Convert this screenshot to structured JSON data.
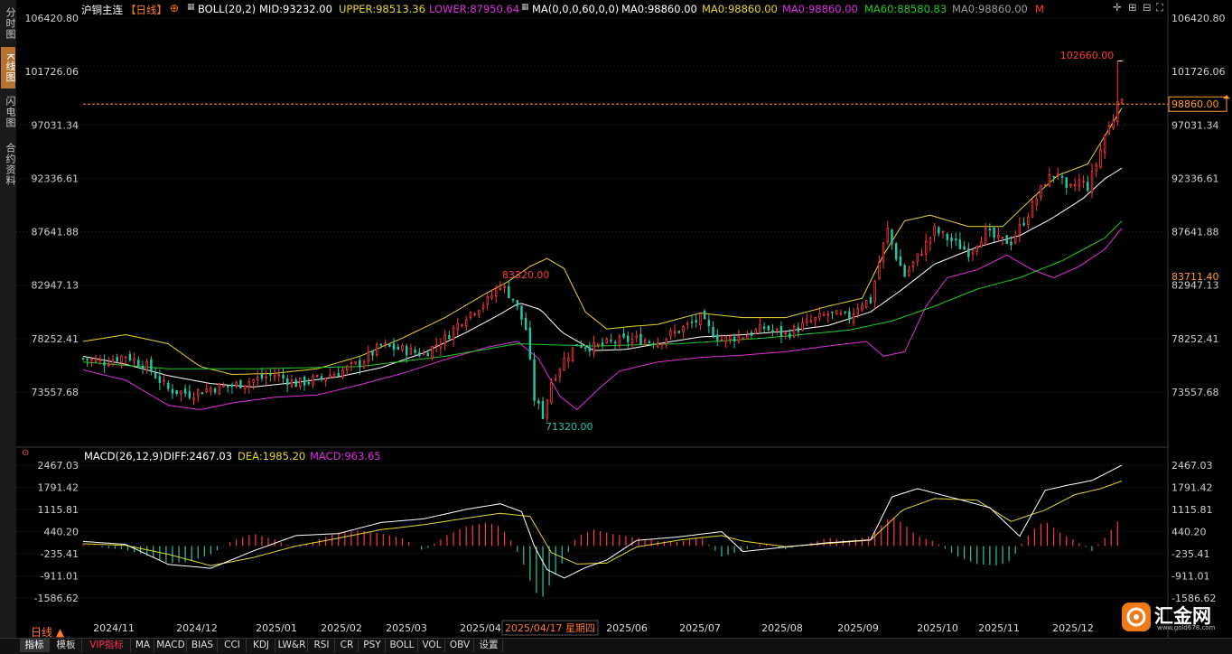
{
  "left_tabs": [
    {
      "name": "tab-fenshi",
      "label": "分时图",
      "active": false
    },
    {
      "name": "tab-kline",
      "label": "K线图",
      "active": true
    },
    {
      "name": "tab-flash",
      "label": "闪电图",
      "active": false
    },
    {
      "name": "tab-contract",
      "label": "合约资料",
      "active": false
    }
  ],
  "header": {
    "symbol": "沪铜主连",
    "period": "【日线】",
    "boll": "BOLL(20,2)",
    "mid": "MID:93232.00",
    "upper": "UPPER:98513.36",
    "lower": "LOWER:87950.64",
    "ma": "MA(0,0,0,60,0,0)",
    "ma0a": "MA0:98860.00",
    "ma0b": "MA0:98860.00",
    "ma0c": "MA0:98860.00",
    "ma60": "MA60:88580.83",
    "ma0d": "MA0:98860.00",
    "m": "M"
  },
  "macd_header": {
    "label": "MACD(26,12,9)",
    "diff": "DIFF:2467.03",
    "dea": "DEA:1985.20",
    "macd": "MACD:963.65"
  },
  "colors": {
    "up": "#ff3b3b",
    "down": "#26c6a6",
    "mid": "#ffffff",
    "upper": "#e8d62a",
    "lower": "#e030e0",
    "ma60": "#22cc22",
    "diff": "#ffffff",
    "dea": "#e8d62a",
    "grid": "#262626",
    "axis": "#cfcfcf"
  },
  "chart_data": {
    "type": "candlestick",
    "price_axis": {
      "ticks": [
        106420.8,
        101726.06,
        97031.34,
        92336.61,
        87641.88,
        82947.13,
        78252.41,
        73557.68
      ],
      "tick_labels": [
        "106420.80",
        "101726.06",
        "97031.34",
        "92336.61",
        "87641.88",
        "82947.13",
        "78252.41",
        "73557.68"
      ]
    },
    "macd_axis": {
      "ticks": [
        2467.03,
        1791.42,
        1115.81,
        440.2,
        -235.41,
        -911.01,
        -1586.62
      ],
      "tick_labels": [
        "2467.03",
        "1791.42",
        "1115.81",
        "440.20",
        "-235.41",
        "-911.01",
        "-1586.62"
      ]
    },
    "x_labels": [
      "2024/11",
      "2024/12",
      "2025/01",
      "2025/02",
      "2025/03",
      "2025/04",
      "2025/06",
      "2025/07",
      "2025/08",
      "2025/09",
      "2025/10",
      "2025/11",
      "2025/12"
    ],
    "cursor_label": "2025/04/17 星期四",
    "annotations": {
      "high": "102660.00",
      "high_value": 102660,
      "low": "71320.00",
      "low_value": 71320,
      "local_high": "83320.00",
      "local_high_value": 83320,
      "last_price": "98860.00",
      "last_value": 98860,
      "level_label": "83711.40",
      "level_value": 83711.4
    },
    "price_path": [
      [
        0,
        76500
      ],
      [
        10,
        76200
      ],
      [
        20,
        76800
      ],
      [
        30,
        75800
      ],
      [
        40,
        73800
      ],
      [
        50,
        73400
      ],
      [
        60,
        73900
      ],
      [
        70,
        74100
      ],
      [
        80,
        74600
      ],
      [
        90,
        75100
      ],
      [
        100,
        74300
      ],
      [
        110,
        74700
      ],
      [
        120,
        75300
      ],
      [
        130,
        76100
      ],
      [
        140,
        77600
      ],
      [
        150,
        77300
      ],
      [
        160,
        76900
      ],
      [
        170,
        78300
      ],
      [
        180,
        80300
      ],
      [
        190,
        81600
      ],
      [
        196,
        83000
      ],
      [
        202,
        81800
      ],
      [
        208,
        79100
      ],
      [
        212,
        73000
      ],
      [
        216,
        71500
      ],
      [
        220,
        74500
      ],
      [
        226,
        76400
      ],
      [
        232,
        77800
      ],
      [
        240,
        77500
      ],
      [
        250,
        78000
      ],
      [
        260,
        78200
      ],
      [
        270,
        78000
      ],
      [
        280,
        79000
      ],
      [
        290,
        80000
      ],
      [
        295,
        78900
      ],
      [
        300,
        78200
      ],
      [
        310,
        78500
      ],
      [
        320,
        79200
      ],
      [
        330,
        78600
      ],
      [
        340,
        79600
      ],
      [
        350,
        80400
      ],
      [
        360,
        80100
      ],
      [
        365,
        81400
      ],
      [
        370,
        81600
      ],
      [
        375,
        85800
      ],
      [
        378,
        87800
      ],
      [
        382,
        85500
      ],
      [
        386,
        83800
      ],
      [
        392,
        85400
      ],
      [
        400,
        87800
      ],
      [
        410,
        86600
      ],
      [
        416,
        85900
      ],
      [
        424,
        87600
      ],
      [
        430,
        86900
      ],
      [
        436,
        86800
      ],
      [
        442,
        88600
      ],
      [
        448,
        90600
      ],
      [
        452,
        92100
      ],
      [
        458,
        92900
      ],
      [
        462,
        91100
      ],
      [
        468,
        92100
      ],
      [
        472,
        91600
      ],
      [
        476,
        93600
      ],
      [
        480,
        96100
      ],
      [
        484,
        97600
      ],
      [
        486,
        99500
      ],
      [
        488,
        98860
      ]
    ],
    "mid_path": [
      [
        0,
        76700
      ],
      [
        20,
        76000
      ],
      [
        40,
        75000
      ],
      [
        60,
        74300
      ],
      [
        80,
        74000
      ],
      [
        100,
        74400
      ],
      [
        120,
        74900
      ],
      [
        140,
        75700
      ],
      [
        160,
        77000
      ],
      [
        180,
        78800
      ],
      [
        195,
        80300
      ],
      [
        205,
        81400
      ],
      [
        215,
        80800
      ],
      [
        225,
        78800
      ],
      [
        240,
        77200
      ],
      [
        255,
        77300
      ],
      [
        270,
        77800
      ],
      [
        290,
        78400
      ],
      [
        310,
        78600
      ],
      [
        330,
        78900
      ],
      [
        350,
        79400
      ],
      [
        370,
        80600
      ],
      [
        385,
        82600
      ],
      [
        400,
        84800
      ],
      [
        420,
        86300
      ],
      [
        440,
        87300
      ],
      [
        455,
        88800
      ],
      [
        470,
        90600
      ],
      [
        480,
        92300
      ],
      [
        488,
        93232
      ]
    ],
    "upper_path": [
      [
        0,
        78000
      ],
      [
        20,
        78600
      ],
      [
        40,
        77800
      ],
      [
        55,
        75800
      ],
      [
        70,
        75100
      ],
      [
        90,
        75200
      ],
      [
        110,
        75600
      ],
      [
        130,
        76700
      ],
      [
        150,
        78300
      ],
      [
        170,
        80100
      ],
      [
        190,
        82300
      ],
      [
        200,
        83300
      ],
      [
        210,
        84600
      ],
      [
        218,
        85300
      ],
      [
        226,
        84400
      ],
      [
        236,
        80600
      ],
      [
        246,
        79100
      ],
      [
        256,
        79300
      ],
      [
        270,
        79500
      ],
      [
        290,
        80500
      ],
      [
        310,
        80100
      ],
      [
        330,
        80100
      ],
      [
        350,
        81100
      ],
      [
        366,
        81800
      ],
      [
        376,
        85600
      ],
      [
        386,
        88600
      ],
      [
        398,
        89100
      ],
      [
        416,
        88100
      ],
      [
        432,
        88100
      ],
      [
        446,
        90600
      ],
      [
        458,
        92600
      ],
      [
        472,
        93600
      ],
      [
        488,
        98513
      ]
    ],
    "lower_path": [
      [
        0,
        75500
      ],
      [
        20,
        74600
      ],
      [
        40,
        72400
      ],
      [
        55,
        72000
      ],
      [
        70,
        72600
      ],
      [
        90,
        73100
      ],
      [
        110,
        73300
      ],
      [
        130,
        74200
      ],
      [
        150,
        75200
      ],
      [
        170,
        76400
      ],
      [
        190,
        77500
      ],
      [
        204,
        78000
      ],
      [
        214,
        76500
      ],
      [
        224,
        73200
      ],
      [
        232,
        72000
      ],
      [
        242,
        73800
      ],
      [
        252,
        75400
      ],
      [
        270,
        76200
      ],
      [
        290,
        76600
      ],
      [
        310,
        76800
      ],
      [
        330,
        77100
      ],
      [
        350,
        77600
      ],
      [
        368,
        78000
      ],
      [
        376,
        76700
      ],
      [
        386,
        77100
      ],
      [
        396,
        81100
      ],
      [
        406,
        83600
      ],
      [
        420,
        84300
      ],
      [
        434,
        85600
      ],
      [
        446,
        84300
      ],
      [
        456,
        83600
      ],
      [
        468,
        84600
      ],
      [
        480,
        86100
      ],
      [
        488,
        87950
      ]
    ],
    "ma60_path": [
      [
        0,
        76200
      ],
      [
        40,
        75600
      ],
      [
        80,
        75600
      ],
      [
        130,
        75800
      ],
      [
        170,
        76700
      ],
      [
        204,
        77800
      ],
      [
        240,
        77600
      ],
      [
        280,
        77800
      ],
      [
        320,
        78300
      ],
      [
        360,
        79000
      ],
      [
        380,
        79800
      ],
      [
        400,
        81100
      ],
      [
        420,
        82600
      ],
      [
        440,
        83600
      ],
      [
        460,
        85100
      ],
      [
        480,
        87100
      ],
      [
        488,
        88580
      ]
    ],
    "macd_hist": [
      [
        0,
        60
      ],
      [
        10,
        -50
      ],
      [
        20,
        -120
      ],
      [
        30,
        -300
      ],
      [
        40,
        -520
      ],
      [
        50,
        -480
      ],
      [
        60,
        -250
      ],
      [
        70,
        150
      ],
      [
        80,
        380
      ],
      [
        90,
        200
      ],
      [
        100,
        -80
      ],
      [
        110,
        180
      ],
      [
        120,
        420
      ],
      [
        130,
        480
      ],
      [
        140,
        380
      ],
      [
        150,
        240
      ],
      [
        160,
        -150
      ],
      [
        170,
        300
      ],
      [
        180,
        600
      ],
      [
        190,
        720
      ],
      [
        196,
        600
      ],
      [
        202,
        80
      ],
      [
        208,
        -700
      ],
      [
        212,
        -1400
      ],
      [
        216,
        -1550
      ],
      [
        220,
        -1100
      ],
      [
        226,
        -420
      ],
      [
        232,
        300
      ],
      [
        240,
        500
      ],
      [
        250,
        350
      ],
      [
        260,
        260
      ],
      [
        270,
        150
      ],
      [
        280,
        120
      ],
      [
        290,
        280
      ],
      [
        300,
        -320
      ],
      [
        310,
        -140
      ],
      [
        320,
        100
      ],
      [
        330,
        -100
      ],
      [
        340,
        60
      ],
      [
        350,
        250
      ],
      [
        360,
        180
      ],
      [
        370,
        300
      ],
      [
        376,
        700
      ],
      [
        380,
        920
      ],
      [
        386,
        650
      ],
      [
        392,
        300
      ],
      [
        400,
        140
      ],
      [
        410,
        -300
      ],
      [
        420,
        -550
      ],
      [
        430,
        -600
      ],
      [
        436,
        -440
      ],
      [
        442,
        170
      ],
      [
        448,
        600
      ],
      [
        452,
        760
      ],
      [
        458,
        440
      ],
      [
        466,
        170
      ],
      [
        474,
        -150
      ],
      [
        480,
        250
      ],
      [
        486,
        740
      ],
      [
        488,
        964
      ]
    ],
    "macd_diff": [
      [
        0,
        140
      ],
      [
        20,
        50
      ],
      [
        40,
        -560
      ],
      [
        60,
        -680
      ],
      [
        80,
        -150
      ],
      [
        100,
        320
      ],
      [
        120,
        380
      ],
      [
        140,
        720
      ],
      [
        160,
        830
      ],
      [
        180,
        1120
      ],
      [
        196,
        1290
      ],
      [
        206,
        1050
      ],
      [
        212,
        0
      ],
      [
        218,
        -720
      ],
      [
        226,
        -980
      ],
      [
        236,
        -660
      ],
      [
        246,
        -430
      ],
      [
        260,
        170
      ],
      [
        280,
        280
      ],
      [
        300,
        440
      ],
      [
        310,
        -170
      ],
      [
        330,
        -30
      ],
      [
        350,
        100
      ],
      [
        370,
        190
      ],
      [
        380,
        1500
      ],
      [
        392,
        1750
      ],
      [
        410,
        1450
      ],
      [
        426,
        1170
      ],
      [
        440,
        300
      ],
      [
        452,
        1700
      ],
      [
        462,
        1850
      ],
      [
        474,
        2000
      ],
      [
        488,
        2467
      ]
    ],
    "macd_dea": [
      [
        0,
        70
      ],
      [
        20,
        20
      ],
      [
        40,
        -250
      ],
      [
        60,
        -600
      ],
      [
        80,
        -350
      ],
      [
        100,
        0
      ],
      [
        120,
        240
      ],
      [
        140,
        500
      ],
      [
        160,
        650
      ],
      [
        180,
        850
      ],
      [
        196,
        1000
      ],
      [
        210,
        900
      ],
      [
        220,
        -200
      ],
      [
        232,
        -550
      ],
      [
        246,
        -520
      ],
      [
        260,
        -30
      ],
      [
        280,
        180
      ],
      [
        300,
        320
      ],
      [
        310,
        150
      ],
      [
        330,
        -20
      ],
      [
        350,
        80
      ],
      [
        370,
        180
      ],
      [
        385,
        1100
      ],
      [
        400,
        1450
      ],
      [
        420,
        1400
      ],
      [
        436,
        750
      ],
      [
        452,
        1100
      ],
      [
        466,
        1570
      ],
      [
        478,
        1750
      ],
      [
        488,
        1985
      ]
    ]
  },
  "bottom_tabs": [
    "指标",
    "模板",
    "VIP指标",
    "MA",
    "MACD",
    "BIAS",
    "CCI",
    "KDJ",
    "LW&R",
    "RSI",
    "CR",
    "PSY",
    "BOLL",
    "VOL",
    "OBV",
    "设置"
  ],
  "period_button": "日线 ▲",
  "brand": {
    "name": "汇金网",
    "site": "www.gold678.com"
  }
}
